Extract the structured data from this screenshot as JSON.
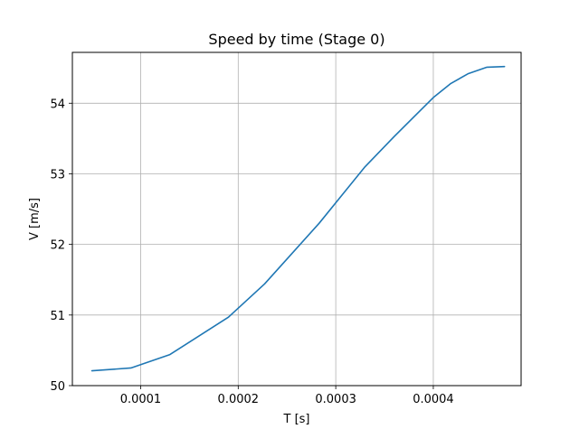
{
  "chart_data": {
    "type": "line",
    "title": "Speed by time (Stage 0)",
    "xlabel": "T [s]",
    "ylabel": "V [m/s]",
    "xlim": [
      3e-05,
      0.00049
    ],
    "ylim": [
      50,
      54.72
    ],
    "grid": true,
    "xticks": [
      {
        "value": 0.0001,
        "label": "0.0001"
      },
      {
        "value": 0.0002,
        "label": "0.0002"
      },
      {
        "value": 0.0003,
        "label": "0.0003"
      },
      {
        "value": 0.0004,
        "label": "0.0004"
      }
    ],
    "yticks": [
      {
        "value": 50,
        "label": "50"
      },
      {
        "value": 51,
        "label": "51"
      },
      {
        "value": 52,
        "label": "52"
      },
      {
        "value": 53,
        "label": "53"
      },
      {
        "value": 54,
        "label": "54"
      }
    ],
    "series": [
      {
        "color": "#1f77b4",
        "x": [
          5e-05,
          9e-05,
          0.00013,
          0.00019,
          0.000227,
          0.000283,
          0.00033,
          0.00036,
          0.0004,
          0.000418,
          0.000436,
          0.000455,
          0.000473
        ],
        "y": [
          50.21,
          50.25,
          50.44,
          50.97,
          51.44,
          52.3,
          53.1,
          53.53,
          54.08,
          54.28,
          54.42,
          54.51,
          54.52
        ]
      }
    ]
  }
}
